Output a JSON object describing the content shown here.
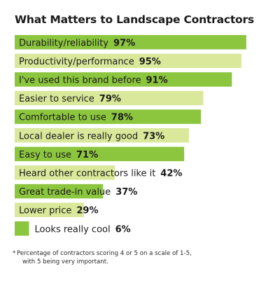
{
  "colors": {
    "dark_green": "#8cc63f",
    "light_green": "#d9e89a",
    "text": "#1a1a1a"
  },
  "chart_data": {
    "type": "bar",
    "orientation": "horizontal",
    "title": "What Matters to Landscape Contractors",
    "value_suffix": "%",
    "categories": [
      "Durability/reliability",
      "Productivity/performance",
      "I've used this brand before",
      "Easier to service",
      "Comfortable to use",
      "Local dealer is really good",
      "Easy to use",
      "Heard other contractors like it",
      "Great trade-in value",
      "Lower price",
      "Looks really cool"
    ],
    "values": [
      97,
      95,
      91,
      79,
      78,
      73,
      71,
      42,
      37,
      29,
      6
    ],
    "bar_colors": [
      "dark_green",
      "light_green",
      "dark_green",
      "light_green",
      "dark_green",
      "light_green",
      "dark_green",
      "light_green",
      "dark_green",
      "light_green",
      "dark_green"
    ],
    "xlim": [
      0,
      100
    ],
    "grid": false,
    "legend": "none"
  },
  "footnote": {
    "mark": "*",
    "line1": "Percentage of contractors scoring 4 or 5 on a scale of 1-5,",
    "line2": "with 5 being very important."
  }
}
